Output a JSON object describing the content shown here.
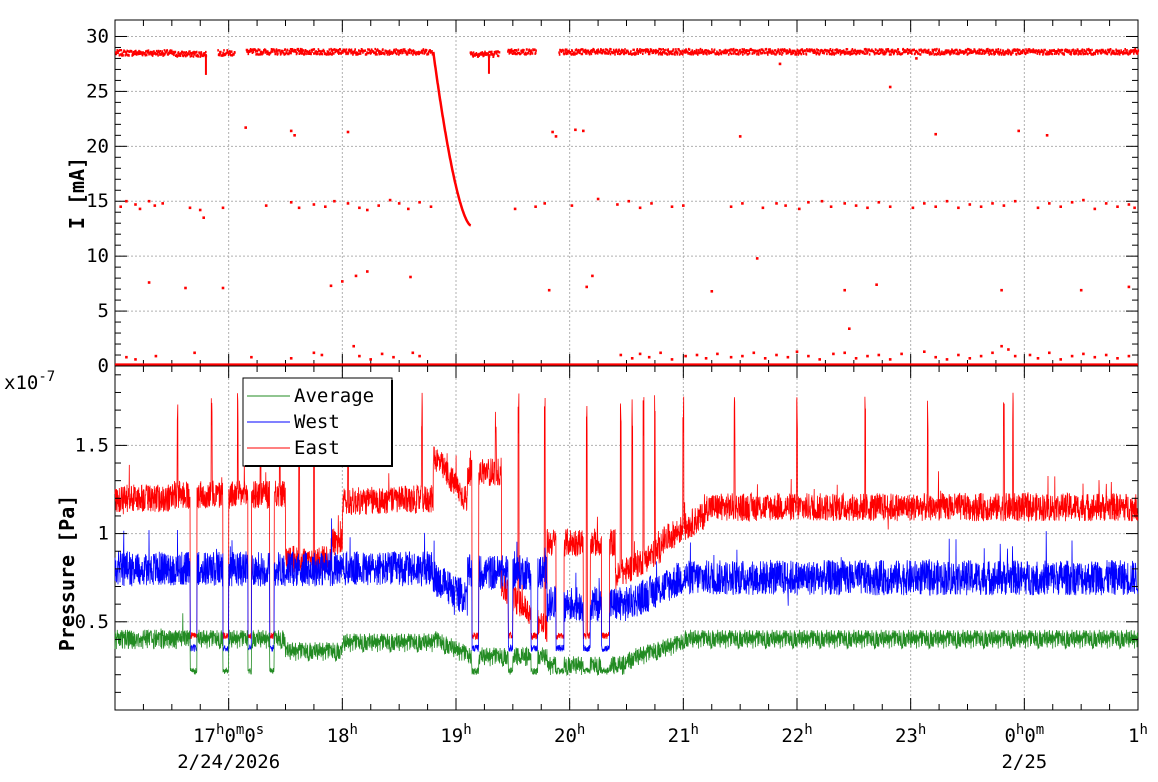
{
  "chart_data": [
    {
      "type": "scatter",
      "ylabel": "I [mA]",
      "yticks": [
        "0",
        "5",
        "10",
        "15",
        "20",
        "25",
        "30"
      ],
      "ylim": [
        0,
        31.5
      ],
      "xlim": [
        "2026-02-24T16:00",
        "2026-02-25T01:00"
      ],
      "grid": true,
      "series": [
        {
          "color": "#ff0000",
          "baseline_segments": [
            {
              "from": 16.0,
              "to": 16.5,
              "value": 28.5
            },
            {
              "from": 16.5,
              "to": 16.8,
              "value": 28.4
            },
            {
              "from": 16.9,
              "to": 17.05,
              "value": 28.5
            },
            {
              "from": 17.15,
              "to": 18.8,
              "value": 28.6
            },
            {
              "from": 19.12,
              "to": 19.38,
              "value": 28.4
            },
            {
              "from": 19.45,
              "to": 19.7,
              "value": 28.6
            },
            {
              "from": 19.9,
              "to": 25.0,
              "value": 28.6
            }
          ],
          "decay": {
            "from": 18.8,
            "to": 19.13,
            "start": 28.6,
            "end": 12.8
          },
          "dips": [
            {
              "x": 16.8,
              "y": 26.5
            },
            {
              "x": 19.29,
              "y": 26.6
            }
          ],
          "zero_line": {
            "from": 16.0,
            "to": 25.0,
            "value": 0.1
          },
          "points": [
            [
              16.05,
              14.5
            ],
            [
              16.1,
              15.0
            ],
            [
              16.18,
              14.7
            ],
            [
              16.22,
              14.3
            ],
            [
              16.3,
              15.0
            ],
            [
              16.35,
              14.6
            ],
            [
              16.42,
              14.8
            ],
            [
              16.66,
              14.4
            ],
            [
              16.75,
              14.2
            ],
            [
              16.78,
              13.5
            ],
            [
              16.95,
              14.4
            ],
            [
              17.33,
              14.6
            ],
            [
              17.55,
              14.9
            ],
            [
              17.62,
              14.4
            ],
            [
              17.75,
              14.7
            ],
            [
              17.85,
              14.5
            ],
            [
              17.93,
              15.0
            ],
            [
              18.05,
              14.8
            ],
            [
              18.15,
              14.4
            ],
            [
              18.22,
              14.2
            ],
            [
              18.32,
              14.6
            ],
            [
              18.42,
              15.1
            ],
            [
              18.5,
              14.8
            ],
            [
              18.58,
              14.3
            ],
            [
              18.68,
              14.9
            ],
            [
              18.78,
              14.5
            ],
            [
              19.52,
              14.3
            ],
            [
              19.7,
              14.5
            ],
            [
              19.78,
              14.8
            ],
            [
              20.02,
              14.6
            ],
            [
              20.25,
              15.2
            ],
            [
              20.42,
              14.7
            ],
            [
              20.52,
              15.0
            ],
            [
              20.62,
              14.4
            ],
            [
              20.72,
              14.8
            ],
            [
              20.9,
              14.5
            ],
            [
              21.0,
              14.6
            ],
            [
              21.42,
              14.5
            ],
            [
              21.52,
              14.8
            ],
            [
              21.7,
              14.4
            ],
            [
              21.82,
              14.8
            ],
            [
              21.9,
              14.6
            ],
            [
              22.02,
              14.3
            ],
            [
              22.1,
              14.9
            ],
            [
              22.22,
              15.0
            ],
            [
              22.3,
              14.5
            ],
            [
              22.42,
              14.8
            ],
            [
              22.52,
              14.6
            ],
            [
              22.62,
              14.4
            ],
            [
              22.72,
              14.9
            ],
            [
              22.82,
              14.5
            ],
            [
              23.02,
              14.4
            ],
            [
              23.12,
              14.8
            ],
            [
              23.22,
              14.5
            ],
            [
              23.32,
              15.0
            ],
            [
              23.42,
              14.4
            ],
            [
              23.52,
              14.7
            ],
            [
              23.62,
              14.5
            ],
            [
              23.72,
              14.8
            ],
            [
              23.82,
              14.6
            ],
            [
              23.92,
              15.0
            ],
            [
              24.12,
              14.4
            ],
            [
              24.22,
              14.8
            ],
            [
              24.32,
              14.5
            ],
            [
              24.42,
              14.9
            ],
            [
              24.52,
              15.1
            ],
            [
              24.62,
              14.3
            ],
            [
              24.72,
              14.8
            ],
            [
              24.82,
              14.5
            ],
            [
              24.92,
              14.7
            ],
            [
              24.97,
              14.4
            ],
            [
              17.15,
              21.7
            ],
            [
              17.55,
              21.4
            ],
            [
              17.58,
              21.0
            ],
            [
              18.05,
              21.3
            ],
            [
              19.85,
              21.3
            ],
            [
              19.88,
              20.9
            ],
            [
              20.05,
              21.5
            ],
            [
              20.12,
              21.4
            ],
            [
              21.5,
              20.9
            ],
            [
              22.82,
              25.4
            ],
            [
              23.22,
              21.1
            ],
            [
              23.95,
              21.4
            ],
            [
              24.2,
              21.0
            ],
            [
              23.05,
              28.0
            ],
            [
              21.85,
              27.5
            ],
            [
              21.65,
              9.8
            ],
            [
              16.3,
              7.6
            ],
            [
              16.62,
              7.1
            ],
            [
              16.95,
              7.1
            ],
            [
              17.9,
              7.3
            ],
            [
              18.0,
              7.7
            ],
            [
              18.12,
              8.2
            ],
            [
              18.22,
              8.6
            ],
            [
              18.6,
              8.1
            ],
            [
              19.82,
              6.9
            ],
            [
              20.2,
              8.2
            ],
            [
              20.15,
              7.2
            ],
            [
              21.25,
              6.8
            ],
            [
              22.42,
              6.9
            ],
            [
              22.7,
              7.4
            ],
            [
              23.8,
              6.9
            ],
            [
              24.5,
              6.9
            ],
            [
              24.92,
              7.2
            ],
            [
              22.46,
              3.4
            ],
            [
              16.1,
              0.8
            ],
            [
              16.18,
              0.6
            ],
            [
              16.36,
              0.9
            ],
            [
              16.7,
              1.2
            ],
            [
              17.2,
              0.8
            ],
            [
              17.55,
              0.7
            ],
            [
              17.75,
              1.2
            ],
            [
              17.82,
              1.0
            ],
            [
              18.1,
              1.8
            ],
            [
              18.15,
              0.9
            ],
            [
              18.25,
              0.6
            ],
            [
              18.35,
              1.1
            ],
            [
              18.45,
              0.8
            ],
            [
              18.62,
              1.2
            ],
            [
              18.68,
              0.9
            ],
            [
              20.45,
              1.0
            ],
            [
              20.55,
              0.7
            ],
            [
              20.62,
              1.1
            ],
            [
              20.7,
              0.8
            ],
            [
              20.8,
              1.2
            ],
            [
              20.9,
              0.6
            ],
            [
              21.02,
              0.9
            ],
            [
              21.12,
              1.0
            ],
            [
              21.2,
              0.7
            ],
            [
              21.3,
              1.1
            ],
            [
              21.42,
              0.8
            ],
            [
              21.52,
              0.9
            ],
            [
              21.62,
              1.2
            ],
            [
              21.72,
              0.7
            ],
            [
              21.82,
              1.0
            ],
            [
              21.92,
              0.8
            ],
            [
              22.0,
              1.3
            ],
            [
              22.1,
              0.9
            ],
            [
              22.2,
              0.6
            ],
            [
              22.32,
              1.1
            ],
            [
              22.42,
              1.2
            ],
            [
              22.52,
              0.7
            ],
            [
              22.62,
              0.9
            ],
            [
              22.72,
              1.0
            ],
            [
              22.82,
              0.6
            ],
            [
              22.92,
              1.1
            ],
            [
              23.12,
              1.3
            ],
            [
              23.22,
              0.8
            ],
            [
              23.32,
              0.6
            ],
            [
              23.42,
              1.0
            ],
            [
              23.52,
              0.7
            ],
            [
              23.62,
              0.9
            ],
            [
              23.72,
              1.2
            ],
            [
              23.8,
              1.8
            ],
            [
              23.86,
              1.5
            ],
            [
              23.92,
              0.9
            ],
            [
              24.05,
              1.0
            ],
            [
              24.12,
              0.7
            ],
            [
              24.22,
              1.2
            ],
            [
              24.32,
              0.6
            ],
            [
              24.42,
              0.9
            ],
            [
              24.52,
              1.1
            ],
            [
              24.62,
              0.8
            ],
            [
              24.72,
              1.0
            ],
            [
              24.82,
              0.7
            ],
            [
              24.92,
              0.9
            ]
          ]
        }
      ]
    },
    {
      "type": "line",
      "ylabel": "Pressure [Pa]",
      "yscale_label": "x10",
      "yscale_exp": "-7",
      "yticks": [
        "0.5",
        "1",
        "1.5"
      ],
      "ylim": [
        0,
        1.95
      ],
      "xlim": [
        "2026-02-24T16:00",
        "2026-02-25T01:00"
      ],
      "grid": true,
      "legend_position": "top-left",
      "xticks": [
        {
          "x": 17,
          "base": "17",
          "sup1": "h",
          "mid": "0",
          "sup2": "m",
          "mid2": "0",
          "sup3": "s"
        },
        {
          "x": 18,
          "base": "18",
          "sup1": "h"
        },
        {
          "x": 19,
          "base": "19",
          "sup1": "h"
        },
        {
          "x": 20,
          "base": "20",
          "sup1": "h"
        },
        {
          "x": 21,
          "base": "21",
          "sup1": "h"
        },
        {
          "x": 22,
          "base": "22",
          "sup1": "h"
        },
        {
          "x": 23,
          "base": "23",
          "sup1": "h"
        },
        {
          "x": 24,
          "base": "0",
          "sup1": "h",
          "mid": "0",
          "sup2": "m"
        },
        {
          "x": 25,
          "base": "1",
          "sup1": "h"
        }
      ],
      "date_labels": [
        {
          "x": 17,
          "text": "2/24/2026"
        },
        {
          "x": 24,
          "text": "2/25"
        }
      ],
      "series": [
        {
          "name": "Average",
          "color": "#228b22",
          "key": "avg"
        },
        {
          "name": "West",
          "color": "#0000ff",
          "key": "west"
        },
        {
          "name": "East",
          "color": "#ff0000",
          "key": "east"
        }
      ]
    }
  ]
}
